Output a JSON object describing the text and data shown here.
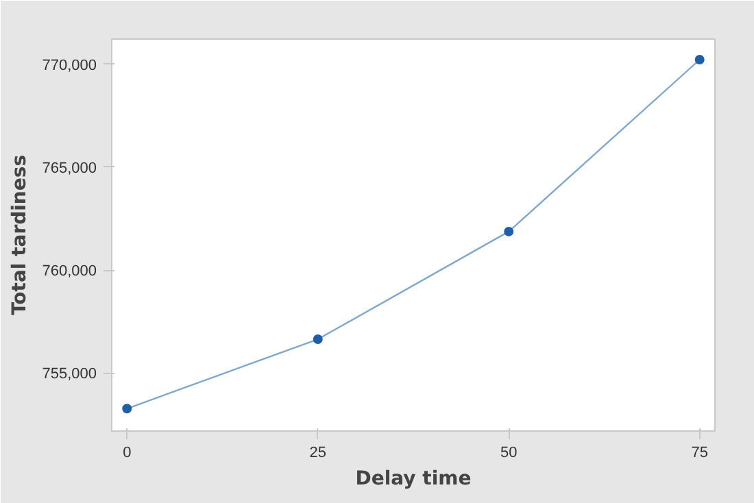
{
  "chart_data": {
    "type": "line",
    "xlabel": "Delay time",
    "ylabel": "Total tardiness",
    "x": [
      0,
      25,
      50,
      75
    ],
    "series": [
      {
        "color": "#1f5fa8",
        "values": [
          753270,
          756640,
          761870,
          770220
        ]
      }
    ],
    "xlim": [
      -2,
      77
    ],
    "xticks": [
      0,
      25,
      50,
      75
    ],
    "ylim": [
      752180,
      771220
    ],
    "yticks": [
      {
        "value": 755000,
        "label": "755,000"
      },
      {
        "value": 760000,
        "label": "760,000"
      },
      {
        "value": 765000,
        "label": "765,000"
      },
      {
        "value": 770000,
        "label": "770,000"
      }
    ],
    "grid": false,
    "marker": "circle",
    "line_style": "solid"
  }
}
